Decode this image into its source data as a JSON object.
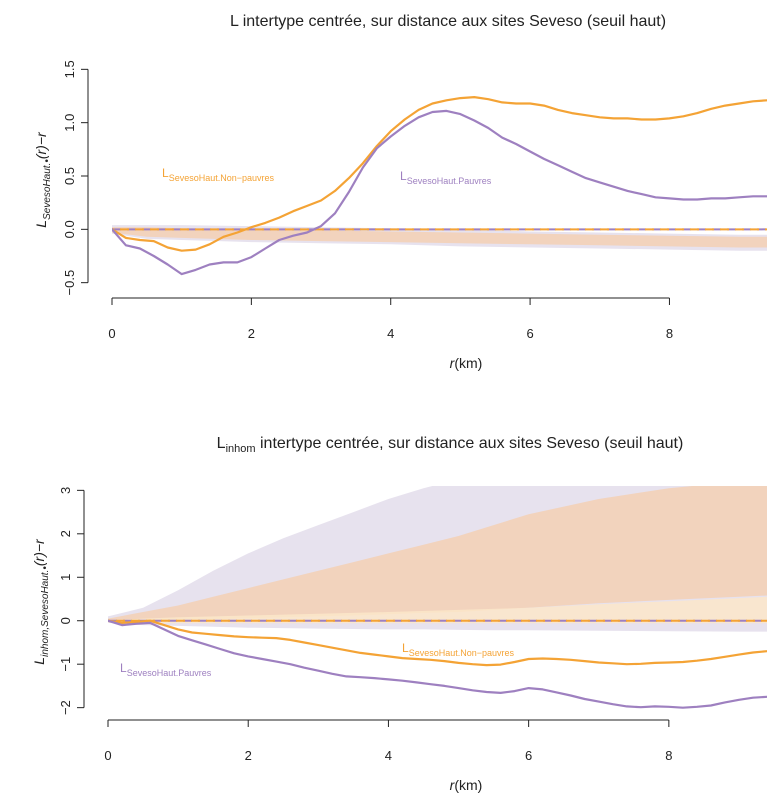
{
  "colors": {
    "non_pauvres": "#f4a335",
    "pauvres": "#9e80c0",
    "envelope_np": "#f3d0b4",
    "envelope_p": "#e3ddeb",
    "envelope_np_light": "#fbe6c9"
  },
  "chart_data": [
    {
      "type": "line",
      "title": "L intertype centrée, sur distance aux sites Seveso (seuil haut)",
      "xlabel": {
        "italic": "r",
        "unit": "(km)"
      },
      "ylabel": {
        "base": "L",
        "sub": "SevesoHaut.•",
        "tail": "(r)−r"
      },
      "xlim": [
        0,
        9.4
      ],
      "ylim": [
        -0.55,
        1.55
      ],
      "xticks": [
        "0",
        "2",
        "4",
        "6",
        "8"
      ],
      "xtick_values": [
        0,
        2,
        4,
        6,
        8
      ],
      "yticks": [
        "−0.5",
        "0.0",
        "0.5",
        "1.0",
        "1.5"
      ],
      "ytick_values": [
        -0.5,
        0,
        0.5,
        1,
        1.5
      ],
      "series": [
        {
          "name": "L SevesoHaut.Non−pauvres",
          "label_base": "L",
          "label_sub": "SevesoHaut.Non−pauvres",
          "color_key": "non_pauvres",
          "x": [
            0,
            0.2,
            0.4,
            0.6,
            0.8,
            1.0,
            1.2,
            1.4,
            1.6,
            1.8,
            2.0,
            2.2,
            2.4,
            2.6,
            2.8,
            3.0,
            3.2,
            3.4,
            3.6,
            3.8,
            4.0,
            4.2,
            4.4,
            4.6,
            4.8,
            5.0,
            5.2,
            5.4,
            5.6,
            5.8,
            6.0,
            6.2,
            6.4,
            6.6,
            6.8,
            7.0,
            7.2,
            7.4,
            7.6,
            7.8,
            8.0,
            8.2,
            8.4,
            8.6,
            8.8,
            9.0,
            9.2,
            9.4
          ],
          "y": [
            0,
            -0.08,
            -0.1,
            -0.11,
            -0.17,
            -0.2,
            -0.19,
            -0.14,
            -0.07,
            -0.03,
            0.02,
            0.06,
            0.11,
            0.17,
            0.22,
            0.27,
            0.36,
            0.48,
            0.62,
            0.78,
            0.92,
            1.03,
            1.12,
            1.18,
            1.21,
            1.23,
            1.24,
            1.22,
            1.19,
            1.18,
            1.18,
            1.16,
            1.12,
            1.09,
            1.07,
            1.05,
            1.04,
            1.04,
            1.03,
            1.03,
            1.04,
            1.06,
            1.09,
            1.13,
            1.16,
            1.18,
            1.2,
            1.21
          ]
        },
        {
          "name": "L SevesoHaut.Pauvres",
          "label_base": "L",
          "label_sub": "SevesoHaut.Pauvres",
          "color_key": "pauvres",
          "x": [
            0,
            0.2,
            0.4,
            0.6,
            0.8,
            1.0,
            1.2,
            1.4,
            1.6,
            1.8,
            2.0,
            2.2,
            2.4,
            2.6,
            2.8,
            3.0,
            3.2,
            3.4,
            3.6,
            3.8,
            4.0,
            4.2,
            4.4,
            4.6,
            4.8,
            5.0,
            5.2,
            5.4,
            5.6,
            5.8,
            6.0,
            6.2,
            6.4,
            6.6,
            6.8,
            7.0,
            7.2,
            7.4,
            7.6,
            7.8,
            8.0,
            8.2,
            8.4,
            8.6,
            8.8,
            9.0,
            9.2,
            9.4
          ],
          "y": [
            0,
            -0.15,
            -0.18,
            -0.25,
            -0.33,
            -0.42,
            -0.38,
            -0.33,
            -0.31,
            -0.31,
            -0.26,
            -0.18,
            -0.1,
            -0.06,
            -0.03,
            0.03,
            0.15,
            0.35,
            0.58,
            0.76,
            0.87,
            0.97,
            1.05,
            1.1,
            1.11,
            1.08,
            1.02,
            0.95,
            0.86,
            0.8,
            0.73,
            0.66,
            0.6,
            0.54,
            0.48,
            0.44,
            0.4,
            0.36,
            0.33,
            0.3,
            0.29,
            0.28,
            0.28,
            0.29,
            0.29,
            0.3,
            0.31,
            0.31
          ]
        }
      ],
      "envelopes": [
        {
          "color_key": "envelope_p",
          "x": [
            0,
            0.5,
            1,
            2,
            3,
            4,
            5,
            6,
            7,
            8,
            9,
            9.4
          ],
          "lo": [
            -0.04,
            -0.09,
            -0.1,
            -0.12,
            -0.13,
            -0.14,
            -0.16,
            -0.17,
            -0.18,
            -0.19,
            -0.2,
            -0.2
          ],
          "hi": [
            0.04,
            0.04,
            0.04,
            0.03,
            0.02,
            0.01,
            0.0,
            -0.02,
            -0.03,
            -0.04,
            -0.05,
            -0.05
          ]
        },
        {
          "color_key": "envelope_np",
          "x": [
            0,
            0.5,
            1,
            2,
            3,
            4,
            5,
            6,
            7,
            8,
            9,
            9.4
          ],
          "lo": [
            -0.03,
            -0.07,
            -0.08,
            -0.1,
            -0.11,
            -0.12,
            -0.13,
            -0.14,
            -0.15,
            -0.16,
            -0.17,
            -0.17
          ],
          "hi": [
            0.02,
            0.02,
            0.01,
            0.0,
            -0.01,
            -0.02,
            -0.03,
            -0.04,
            -0.05,
            -0.06,
            -0.07,
            -0.07
          ]
        }
      ],
      "reference_y": 0
    },
    {
      "type": "line",
      "title_base": "L",
      "title_sub": "inhom",
      "title_rest": " intertype centrée, sur distance aux sites Seveso (seuil haut)",
      "xlabel": {
        "italic": "r",
        "unit": "(km)"
      },
      "ylabel": {
        "base": "L",
        "sub": "inhom,SevesoHaut.•",
        "tail": "(r)−r"
      },
      "xlim": [
        0,
        9.4
      ],
      "ylim": [
        -2.1,
        3.1
      ],
      "xticks": [
        "0",
        "2",
        "4",
        "6",
        "8"
      ],
      "xtick_values": [
        0,
        2,
        4,
        6,
        8
      ],
      "yticks": [
        "−2",
        "−1",
        "0",
        "1",
        "2",
        "3"
      ],
      "ytick_values": [
        -2,
        -1,
        0,
        1,
        2,
        3
      ],
      "series": [
        {
          "name": "L SevesoHaut.Non−pauvres",
          "label_base": "L",
          "label_sub": "SevesoHaut.Non−pauvres",
          "color_key": "non_pauvres",
          "x": [
            0,
            0.2,
            0.4,
            0.6,
            0.8,
            1.0,
            1.2,
            1.4,
            1.6,
            1.8,
            2.0,
            2.2,
            2.4,
            2.6,
            2.8,
            3.0,
            3.2,
            3.4,
            3.6,
            3.8,
            4.0,
            4.2,
            4.4,
            4.6,
            4.8,
            5.0,
            5.2,
            5.4,
            5.6,
            5.8,
            6.0,
            6.2,
            6.4,
            6.6,
            6.8,
            7.0,
            7.2,
            7.4,
            7.6,
            7.8,
            8.0,
            8.2,
            8.4,
            8.6,
            8.8,
            9.0,
            9.2,
            9.4
          ],
          "y": [
            0,
            -0.05,
            -0.03,
            0.0,
            -0.1,
            -0.2,
            -0.27,
            -0.3,
            -0.33,
            -0.36,
            -0.38,
            -0.39,
            -0.4,
            -0.44,
            -0.5,
            -0.56,
            -0.62,
            -0.68,
            -0.74,
            -0.78,
            -0.82,
            -0.86,
            -0.88,
            -0.9,
            -0.93,
            -0.97,
            -1.0,
            -1.02,
            -1.01,
            -0.95,
            -0.88,
            -0.87,
            -0.88,
            -0.9,
            -0.93,
            -0.96,
            -0.98,
            -1.0,
            -0.99,
            -0.97,
            -0.96,
            -0.95,
            -0.92,
            -0.88,
            -0.83,
            -0.78,
            -0.73,
            -0.7
          ]
        },
        {
          "name": "L SevesoHaut.Pauvres",
          "label_base": "L",
          "label_sub": "SevesoHaut.Pauvres",
          "color_key": "pauvres",
          "x": [
            0,
            0.2,
            0.4,
            0.6,
            0.8,
            1.0,
            1.2,
            1.4,
            1.6,
            1.8,
            2.0,
            2.2,
            2.4,
            2.6,
            2.8,
            3.0,
            3.2,
            3.4,
            3.6,
            3.8,
            4.0,
            4.2,
            4.4,
            4.6,
            4.8,
            5.0,
            5.2,
            5.4,
            5.6,
            5.8,
            6.0,
            6.2,
            6.4,
            6.6,
            6.8,
            7.0,
            7.2,
            7.4,
            7.6,
            7.8,
            8.0,
            8.2,
            8.4,
            8.6,
            8.8,
            9.0,
            9.2,
            9.4
          ],
          "y": [
            0,
            -0.1,
            -0.07,
            -0.05,
            -0.2,
            -0.35,
            -0.45,
            -0.55,
            -0.65,
            -0.75,
            -0.82,
            -0.88,
            -0.94,
            -1.0,
            -1.08,
            -1.15,
            -1.22,
            -1.28,
            -1.3,
            -1.32,
            -1.35,
            -1.38,
            -1.42,
            -1.46,
            -1.5,
            -1.55,
            -1.6,
            -1.64,
            -1.66,
            -1.62,
            -1.55,
            -1.58,
            -1.65,
            -1.72,
            -1.8,
            -1.86,
            -1.92,
            -1.97,
            -1.99,
            -1.97,
            -1.98,
            -2.0,
            -1.98,
            -1.95,
            -1.88,
            -1.82,
            -1.77,
            -1.75
          ]
        }
      ],
      "envelopes": [
        {
          "color_key": "envelope_p",
          "x": [
            0,
            0.5,
            1,
            1.5,
            2,
            2.5,
            3,
            3.5,
            4,
            4.5,
            5,
            5.5,
            6,
            7,
            8,
            9,
            9.4
          ],
          "lo": [
            -0.05,
            -0.1,
            -0.12,
            -0.14,
            -0.16,
            -0.17,
            -0.18,
            -0.19,
            -0.2,
            -0.2,
            -0.21,
            -0.22,
            -0.22,
            -0.23,
            -0.24,
            -0.25,
            -0.25
          ],
          "hi": [
            0.1,
            0.3,
            0.7,
            1.15,
            1.55,
            1.9,
            2.2,
            2.5,
            2.8,
            3.05,
            3.25,
            3.35,
            3.4,
            3.45,
            3.5,
            3.5,
            3.5
          ]
        },
        {
          "color_key": "envelope_np",
          "x": [
            0,
            0.5,
            1,
            1.5,
            2,
            2.5,
            3,
            3.5,
            4,
            4.5,
            5,
            5.5,
            6,
            7,
            8,
            9,
            9.4
          ],
          "lo": [
            -0.02,
            0.0,
            0.02,
            0.04,
            0.06,
            0.08,
            0.1,
            0.12,
            0.15,
            0.18,
            0.2,
            0.25,
            0.3,
            0.4,
            0.48,
            0.55,
            0.58
          ],
          "hi": [
            0.05,
            0.2,
            0.35,
            0.55,
            0.75,
            0.95,
            1.15,
            1.35,
            1.55,
            1.75,
            1.95,
            2.2,
            2.45,
            2.8,
            3.05,
            3.2,
            3.25
          ]
        },
        {
          "color_key": "envelope_np_light",
          "x": [
            0,
            0.5,
            1,
            2,
            3,
            4,
            5,
            6,
            7,
            8,
            9,
            9.4
          ],
          "lo": [
            -0.04,
            -0.05,
            -0.06,
            -0.06,
            -0.06,
            -0.06,
            -0.06,
            -0.06,
            -0.06,
            -0.06,
            -0.06,
            -0.06
          ],
          "hi": [
            0.01,
            0.05,
            0.08,
            0.12,
            0.16,
            0.2,
            0.25,
            0.3,
            0.38,
            0.45,
            0.52,
            0.55
          ]
        }
      ],
      "reference_y": 0
    }
  ]
}
